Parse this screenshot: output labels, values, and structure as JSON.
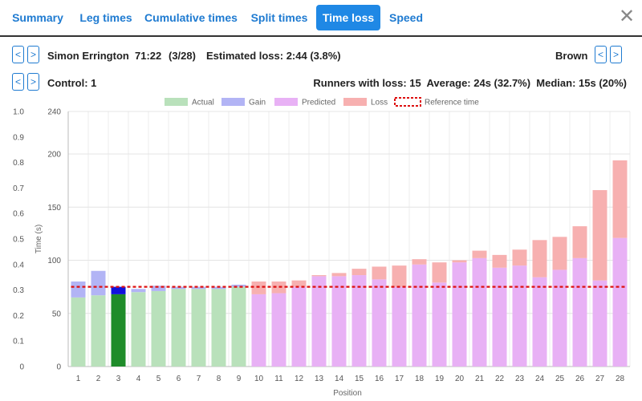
{
  "tabs": [
    {
      "label": "Summary",
      "active": false
    },
    {
      "label": "Leg times",
      "active": false
    },
    {
      "label": "Cumulative times",
      "active": false
    },
    {
      "label": "Split times",
      "active": false
    },
    {
      "label": "Time loss",
      "active": true
    },
    {
      "label": "Speed",
      "active": false
    }
  ],
  "close_label": "✕",
  "nav": {
    "prev": "<",
    "next": ">"
  },
  "runner": {
    "name": "Simon Errington",
    "time": "71:22",
    "position": "(3/28)",
    "estimated_loss": "Estimated loss: 2:44 (3.8%)",
    "course": "Brown"
  },
  "control": {
    "label": "Control: 1",
    "stats": "Runners with loss: 15  Average: 24s (32.7%)  Median: 15s (20%)"
  },
  "chart_data": {
    "type": "bar",
    "xlabel": "Position",
    "ylabel": "Time (s)",
    "ylim": [
      0,
      240
    ],
    "y2lim": [
      0,
      1.0
    ],
    "yticks": [
      0,
      50,
      100,
      150,
      200,
      240
    ],
    "y2ticks": [
      "0",
      "0.1",
      "0.2",
      "0.3",
      "0.4",
      "0.5",
      "0.6",
      "0.7",
      "0.8",
      "0.9",
      "1.0"
    ],
    "grid": true,
    "legend_position": "top",
    "legend": [
      {
        "label": "Actual",
        "color": "#b9e1bb"
      },
      {
        "label": "Gain",
        "color": "#b2b4f5"
      },
      {
        "label": "Predicted",
        "color": "#e8b1f5"
      },
      {
        "label": "Loss",
        "color": "#f7b0b0"
      },
      {
        "label": "Reference time",
        "color": "#dd1111"
      }
    ],
    "reference_time": 75,
    "highlight_position": 3,
    "highlight_colors": {
      "actual": "#1f8c2a",
      "gain": "#1111dd"
    },
    "categories": [
      "1",
      "2",
      "3",
      "4",
      "5",
      "6",
      "7",
      "8",
      "9",
      "10",
      "11",
      "12",
      "13",
      "14",
      "15",
      "16",
      "17",
      "18",
      "19",
      "20",
      "21",
      "22",
      "23",
      "24",
      "25",
      "26",
      "27",
      "28"
    ],
    "actual": [
      65,
      67,
      68,
      70,
      71,
      73,
      73,
      73,
      75,
      80,
      80,
      81,
      86,
      88,
      92,
      94,
      95,
      101,
      98,
      100,
      109,
      105,
      110,
      119,
      122,
      132,
      166,
      194
    ],
    "predicted": [
      80,
      90,
      75,
      73,
      76,
      75,
      75,
      75,
      77,
      68,
      69,
      75,
      85,
      85,
      86,
      82,
      75,
      96,
      79,
      98,
      102,
      93,
      95,
      84,
      91,
      102,
      81,
      121
    ]
  }
}
